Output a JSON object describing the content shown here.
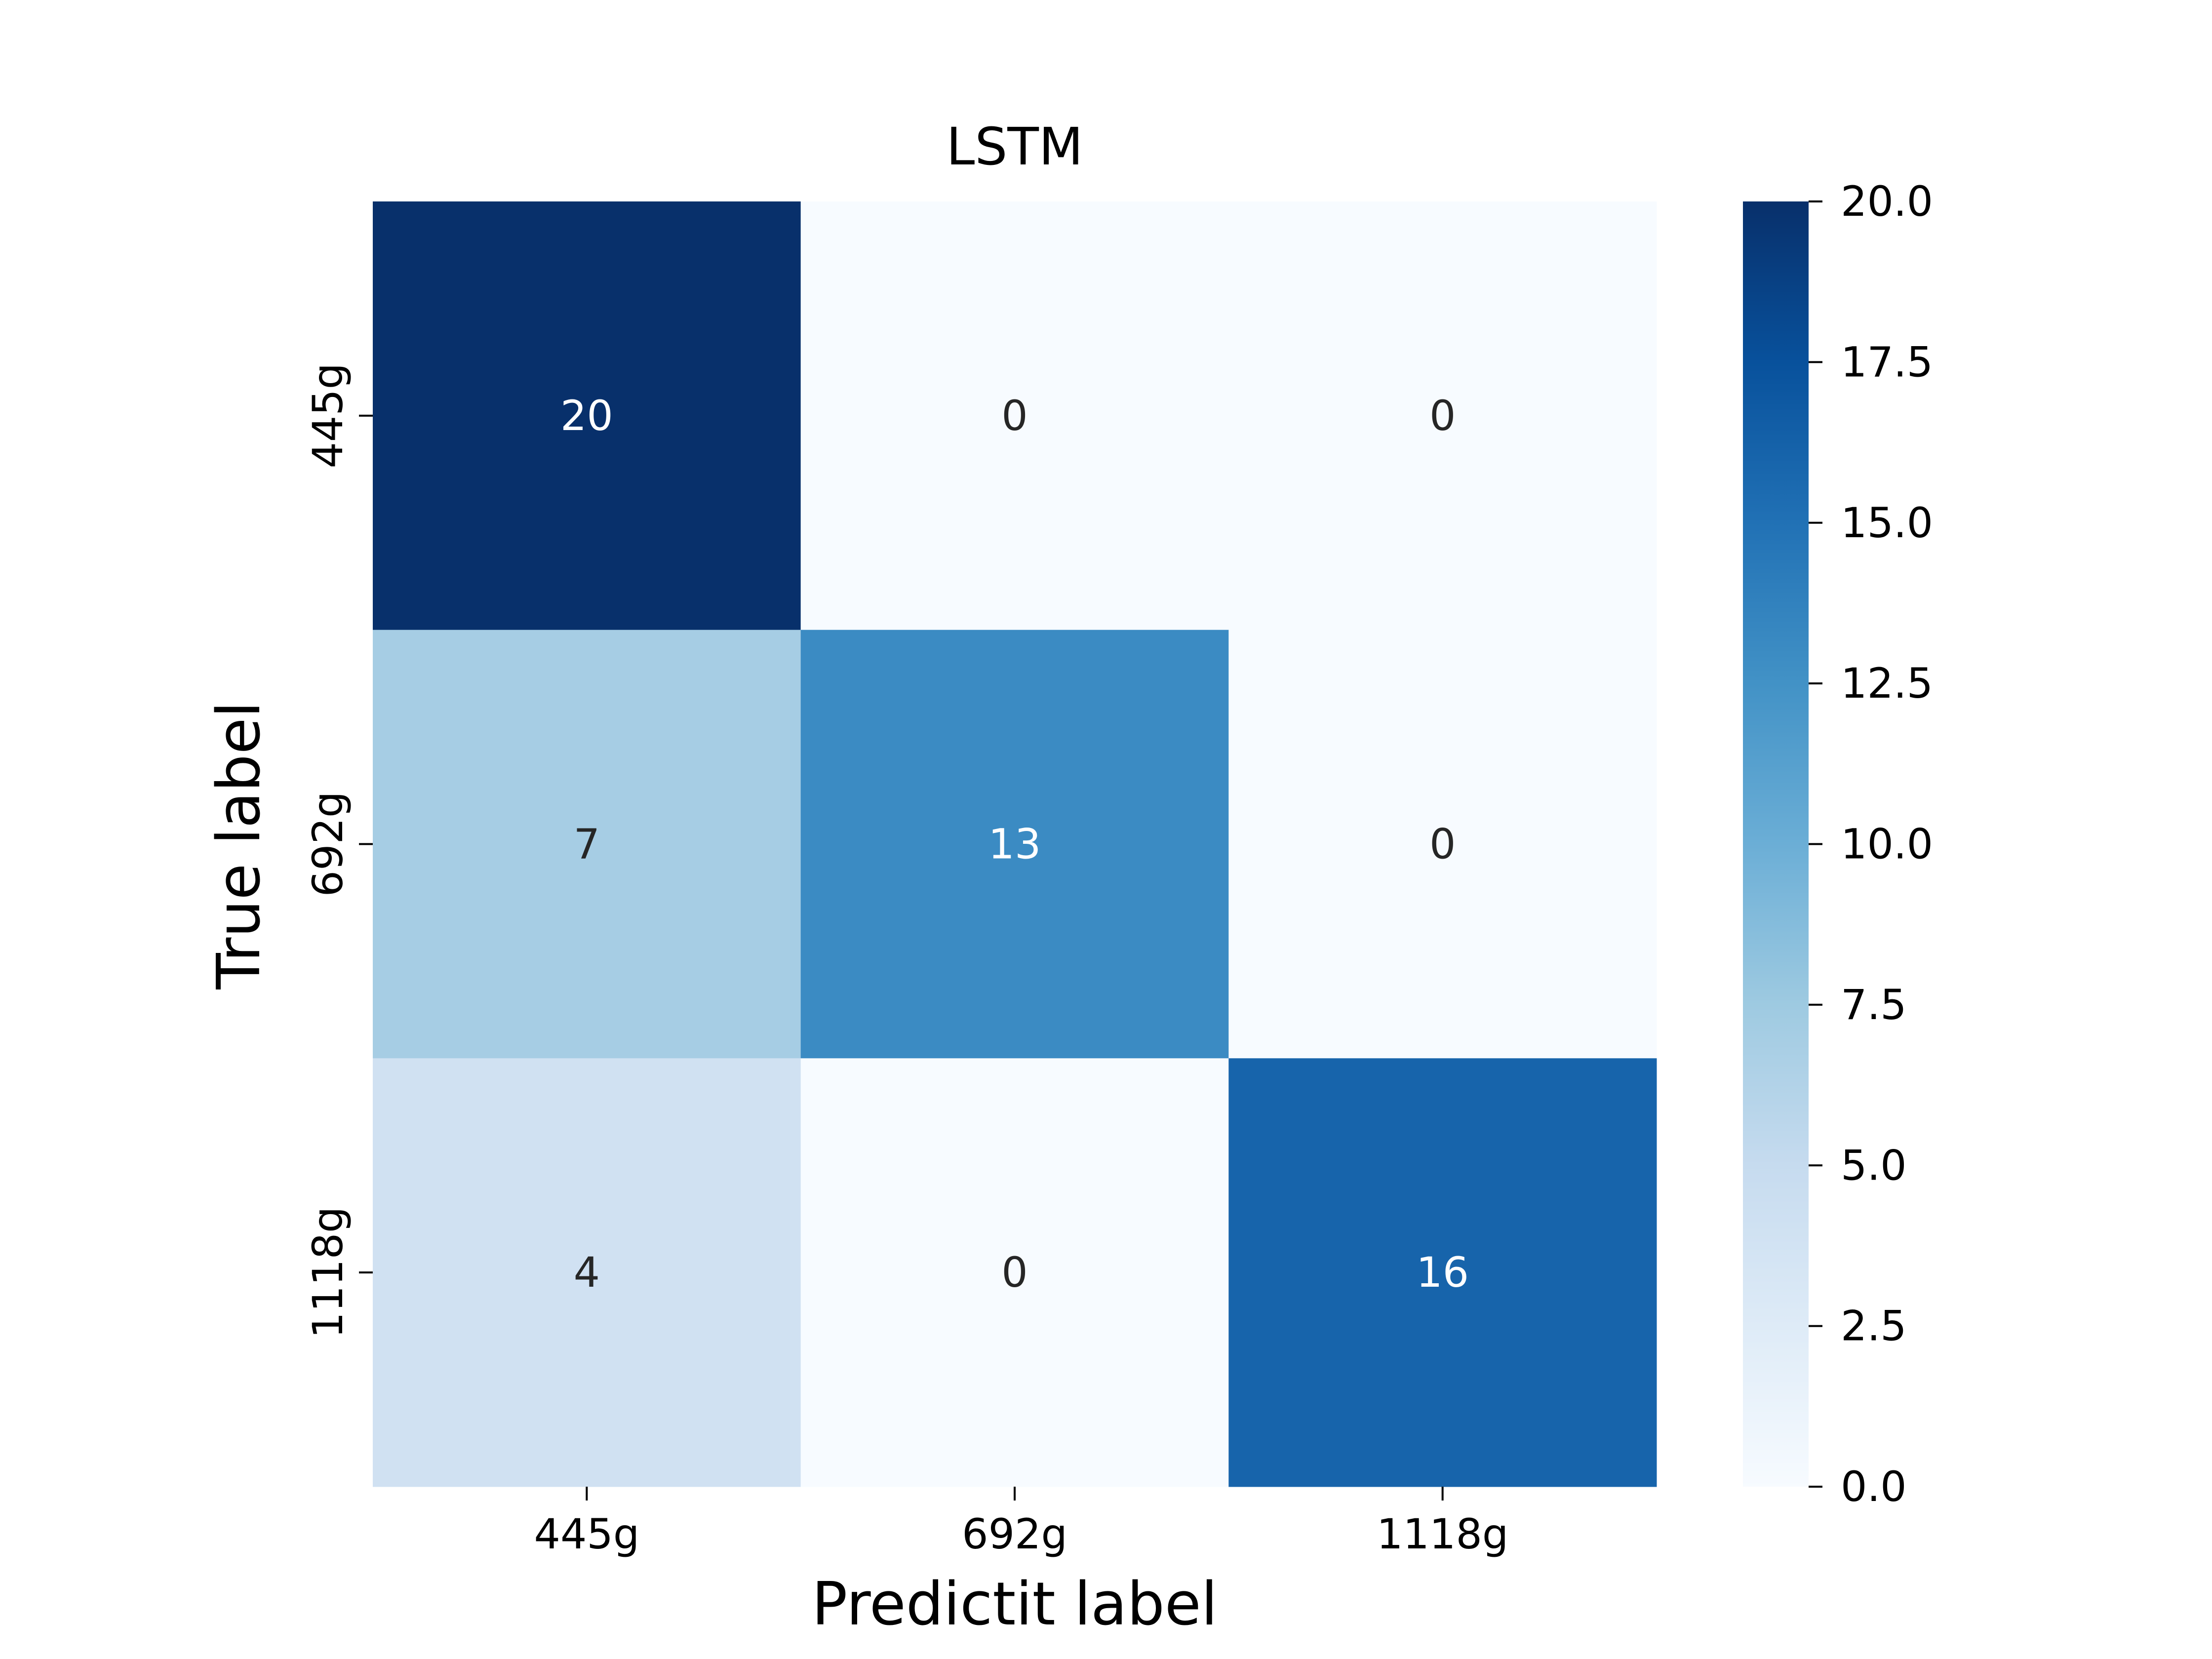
{
  "chart_data": {
    "type": "heatmap",
    "title": "LSTM",
    "xlabel": "Predictit label",
    "ylabel": "True label",
    "x_categories": [
      "445g",
      "692g",
      "1118g"
    ],
    "y_categories": [
      "445g",
      "692g",
      "1118g"
    ],
    "values": [
      [
        20,
        0,
        0
      ],
      [
        7,
        13,
        0
      ],
      [
        4,
        0,
        16
      ]
    ],
    "cell_labels": [
      [
        "20",
        "0",
        "0"
      ],
      [
        "7",
        "13",
        "0"
      ],
      [
        "4",
        "0",
        "16"
      ]
    ],
    "colorbar": {
      "range": [
        0,
        20
      ],
      "ticks": [
        0.0,
        2.5,
        5.0,
        7.5,
        10.0,
        12.5,
        15.0,
        17.5,
        20.0
      ],
      "tick_labels": [
        "0.0",
        "2.5",
        "5.0",
        "7.5",
        "10.0",
        "12.5",
        "15.0",
        "17.5",
        "20.0"
      ],
      "colormap": "Blues"
    },
    "grid": false,
    "legend": "colorbar-right"
  }
}
